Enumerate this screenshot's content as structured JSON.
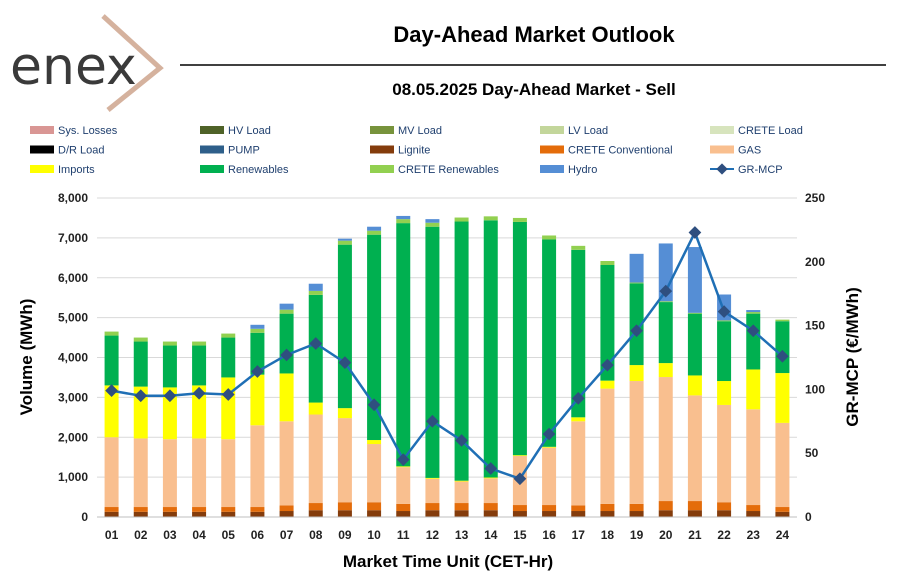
{
  "header": {
    "logo_text": "enex",
    "title": "Day-Ahead Market Outlook",
    "subtitle": "08.05.2025  Day-Ahead Market - Sell"
  },
  "chart_data": {
    "type": "bar",
    "stacked": true,
    "title": "08.05.2025  Day-Ahead Market - Sell",
    "xlabel": "Market Time Unit (CET-Hr)",
    "ylabel": "Volume (MWh)",
    "y2label": "GR-MCP (€/MWh)",
    "ylim": [
      0,
      8000
    ],
    "y2lim": [
      0,
      250
    ],
    "yticks": [
      "0",
      "1,000",
      "2,000",
      "3,000",
      "4,000",
      "5,000",
      "6,000",
      "7,000",
      "8,000"
    ],
    "y2ticks": [
      "0",
      "50",
      "100",
      "150",
      "200",
      "250"
    ],
    "legend_position": "top",
    "categories": [
      "01",
      "02",
      "03",
      "04",
      "05",
      "06",
      "07",
      "08",
      "09",
      "10",
      "11",
      "12",
      "13",
      "14",
      "15",
      "16",
      "17",
      "18",
      "19",
      "20",
      "21",
      "22",
      "23",
      "24"
    ],
    "legend": [
      {
        "name": "Sys. Losses",
        "color": "#d99694"
      },
      {
        "name": "HV Load",
        "color": "#4f6228"
      },
      {
        "name": "MV Load",
        "color": "#77933c"
      },
      {
        "name": "LV Load",
        "color": "#c3d69b"
      },
      {
        "name": "CRETE Load",
        "color": "#d7e4bd"
      },
      {
        "name": "D/R Load",
        "color": "#000000"
      },
      {
        "name": "PUMP",
        "color": "#2e5f8a"
      },
      {
        "name": "Lignite",
        "color": "#843c0c"
      },
      {
        "name": "CRETE Conventional",
        "color": "#e46c0a"
      },
      {
        "name": "GAS",
        "color": "#f9bf8f"
      },
      {
        "name": "Imports",
        "color": "#ffff00"
      },
      {
        "name": "Renewables",
        "color": "#00b050"
      },
      {
        "name": "CRETE Renewables",
        "color": "#92d050"
      },
      {
        "name": "Hydro",
        "color": "#558ed5"
      },
      {
        "name": "GR-MCP",
        "color": "#1f6fb5"
      }
    ],
    "series": [
      {
        "name": "Lignite",
        "color": "#843c0c",
        "values": [
          130,
          130,
          130,
          130,
          130,
          130,
          150,
          170,
          170,
          170,
          150,
          170,
          170,
          170,
          150,
          150,
          150,
          150,
          150,
          170,
          170,
          170,
          150,
          130
        ]
      },
      {
        "name": "CRETE Conventional",
        "color": "#e46c0a",
        "values": [
          120,
          120,
          120,
          120,
          120,
          120,
          140,
          180,
          200,
          200,
          180,
          180,
          180,
          180,
          150,
          150,
          140,
          180,
          180,
          230,
          230,
          200,
          150,
          120
        ]
      },
      {
        "name": "GAS",
        "color": "#f9bf8f",
        "values": [
          1750,
          1720,
          1700,
          1720,
          1700,
          2050,
          2110,
          2220,
          2110,
          1460,
          920,
          610,
          540,
          620,
          1230,
          1440,
          2110,
          2890,
          3080,
          3110,
          2650,
          2440,
          2400,
          2110
        ]
      },
      {
        "name": "Imports",
        "color": "#ffff00",
        "values": [
          1300,
          1300,
          1300,
          1330,
          1550,
          1270,
          1200,
          300,
          250,
          100,
          20,
          20,
          20,
          20,
          20,
          20,
          100,
          200,
          400,
          350,
          500,
          600,
          1000,
          1250
        ]
      },
      {
        "name": "Renewables",
        "color": "#00b050",
        "values": [
          1250,
          1130,
          1050,
          1000,
          1000,
          1050,
          1500,
          2700,
          4100,
          5150,
          6100,
          6300,
          6500,
          6450,
          5850,
          5200,
          4200,
          2900,
          2050,
          1530,
          1550,
          1500,
          1400,
          1300
        ]
      },
      {
        "name": "CRETE Renewables",
        "color": "#92d050",
        "values": [
          100,
          100,
          100,
          100,
          100,
          100,
          100,
          100,
          100,
          100,
          100,
          100,
          100,
          100,
          100,
          100,
          100,
          100,
          20,
          20,
          20,
          20,
          40,
          40
        ]
      },
      {
        "name": "Hydro",
        "color": "#558ed5",
        "values": [
          0,
          0,
          0,
          0,
          0,
          100,
          150,
          180,
          50,
          100,
          80,
          90,
          0,
          0,
          0,
          0,
          0,
          0,
          720,
          1450,
          1650,
          650,
          50,
          0
        ]
      },
      {
        "name": "GR-MCP",
        "type": "line",
        "axis": "y2",
        "color": "#1f6fb5",
        "values": [
          99,
          95,
          95,
          97,
          96,
          114,
          127,
          136,
          121,
          88,
          45,
          75,
          60,
          38,
          30,
          65,
          93,
          119,
          146,
          177,
          223,
          161,
          146,
          126
        ]
      }
    ]
  }
}
